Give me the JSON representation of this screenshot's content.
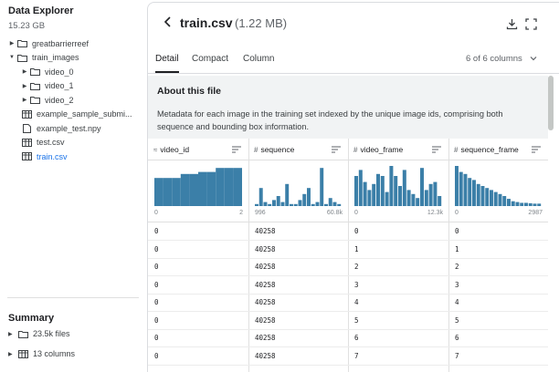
{
  "sidebar": {
    "title": "Data Explorer",
    "size": "15.23 GB",
    "tree": [
      {
        "label": "greatbarrierreef",
        "type": "folder",
        "expanded": false,
        "level": 0
      },
      {
        "label": "train_images",
        "type": "folder",
        "expanded": true,
        "level": 0
      },
      {
        "label": "video_0",
        "type": "folder",
        "expanded": false,
        "level": 1
      },
      {
        "label": "video_1",
        "type": "folder",
        "expanded": false,
        "level": 1
      },
      {
        "label": "video_2",
        "type": "folder",
        "expanded": false,
        "level": 1
      },
      {
        "label": "example_sample_submi...",
        "type": "table",
        "level": 0
      },
      {
        "label": "example_test.npy",
        "type": "file",
        "level": 0
      },
      {
        "label": "test.csv",
        "type": "table",
        "level": 0
      },
      {
        "label": "train.csv",
        "type": "table",
        "level": 0,
        "active": true
      }
    ],
    "summary": {
      "title": "Summary",
      "files": "23.5k files",
      "columns": "13 columns"
    }
  },
  "header": {
    "filename": "train.csv",
    "filesize": "(1.22 MB)"
  },
  "tabs": [
    "Detail",
    "Compact",
    "Column"
  ],
  "active_tab": "Detail",
  "columns_info": "6 of 6 columns",
  "about": {
    "title": "About this file",
    "text": "Metadata for each image in the training set indexed by the unique image ids, comprising both sequence and bounding box information."
  },
  "table": {
    "columns": [
      {
        "name": "video_id",
        "type_icon": "≈",
        "min": "0",
        "max": "2",
        "hist": [
          0.7,
          0.7,
          0.7,
          0.8,
          0.8,
          0.85,
          0.85,
          0.95,
          0.95,
          0.95
        ]
      },
      {
        "name": "sequence",
        "type_icon": "#",
        "min": "996",
        "max": "60.8k",
        "hist": [
          0.05,
          0.45,
          0.1,
          0.05,
          0.15,
          0.25,
          0.1,
          0.55,
          0.05,
          0.05,
          0.15,
          0.3,
          0.45,
          0.05,
          0.1,
          0.95,
          0.05,
          0.2,
          0.1,
          0.05
        ]
      },
      {
        "name": "video_frame",
        "type_icon": "#",
        "min": "0",
        "max": "12.3k",
        "hist": [
          0.75,
          0.9,
          0.6,
          0.4,
          0.55,
          0.8,
          0.75,
          0.35,
          1.0,
          0.75,
          0.5,
          0.9,
          0.4,
          0.3,
          0.2,
          0.95,
          0.4,
          0.55,
          0.6,
          0.25
        ]
      },
      {
        "name": "sequence_frame",
        "type_icon": "#",
        "min": "0",
        "max": "2987",
        "hist": [
          1.0,
          0.85,
          0.8,
          0.7,
          0.65,
          0.55,
          0.5,
          0.45,
          0.4,
          0.35,
          0.3,
          0.25,
          0.18,
          0.12,
          0.1,
          0.08,
          0.08,
          0.07,
          0.06,
          0.06
        ]
      }
    ],
    "rows": [
      [
        "0",
        "40258",
        "0",
        "0"
      ],
      [
        "0",
        "40258",
        "1",
        "1"
      ],
      [
        "0",
        "40258",
        "2",
        "2"
      ],
      [
        "0",
        "40258",
        "3",
        "3"
      ],
      [
        "0",
        "40258",
        "4",
        "4"
      ],
      [
        "0",
        "40258",
        "5",
        "5"
      ],
      [
        "0",
        "40258",
        "6",
        "6"
      ],
      [
        "0",
        "40258",
        "7",
        "7"
      ]
    ]
  },
  "colors": {
    "bar": "#3b7fa8",
    "accent": "#1a73e8"
  }
}
